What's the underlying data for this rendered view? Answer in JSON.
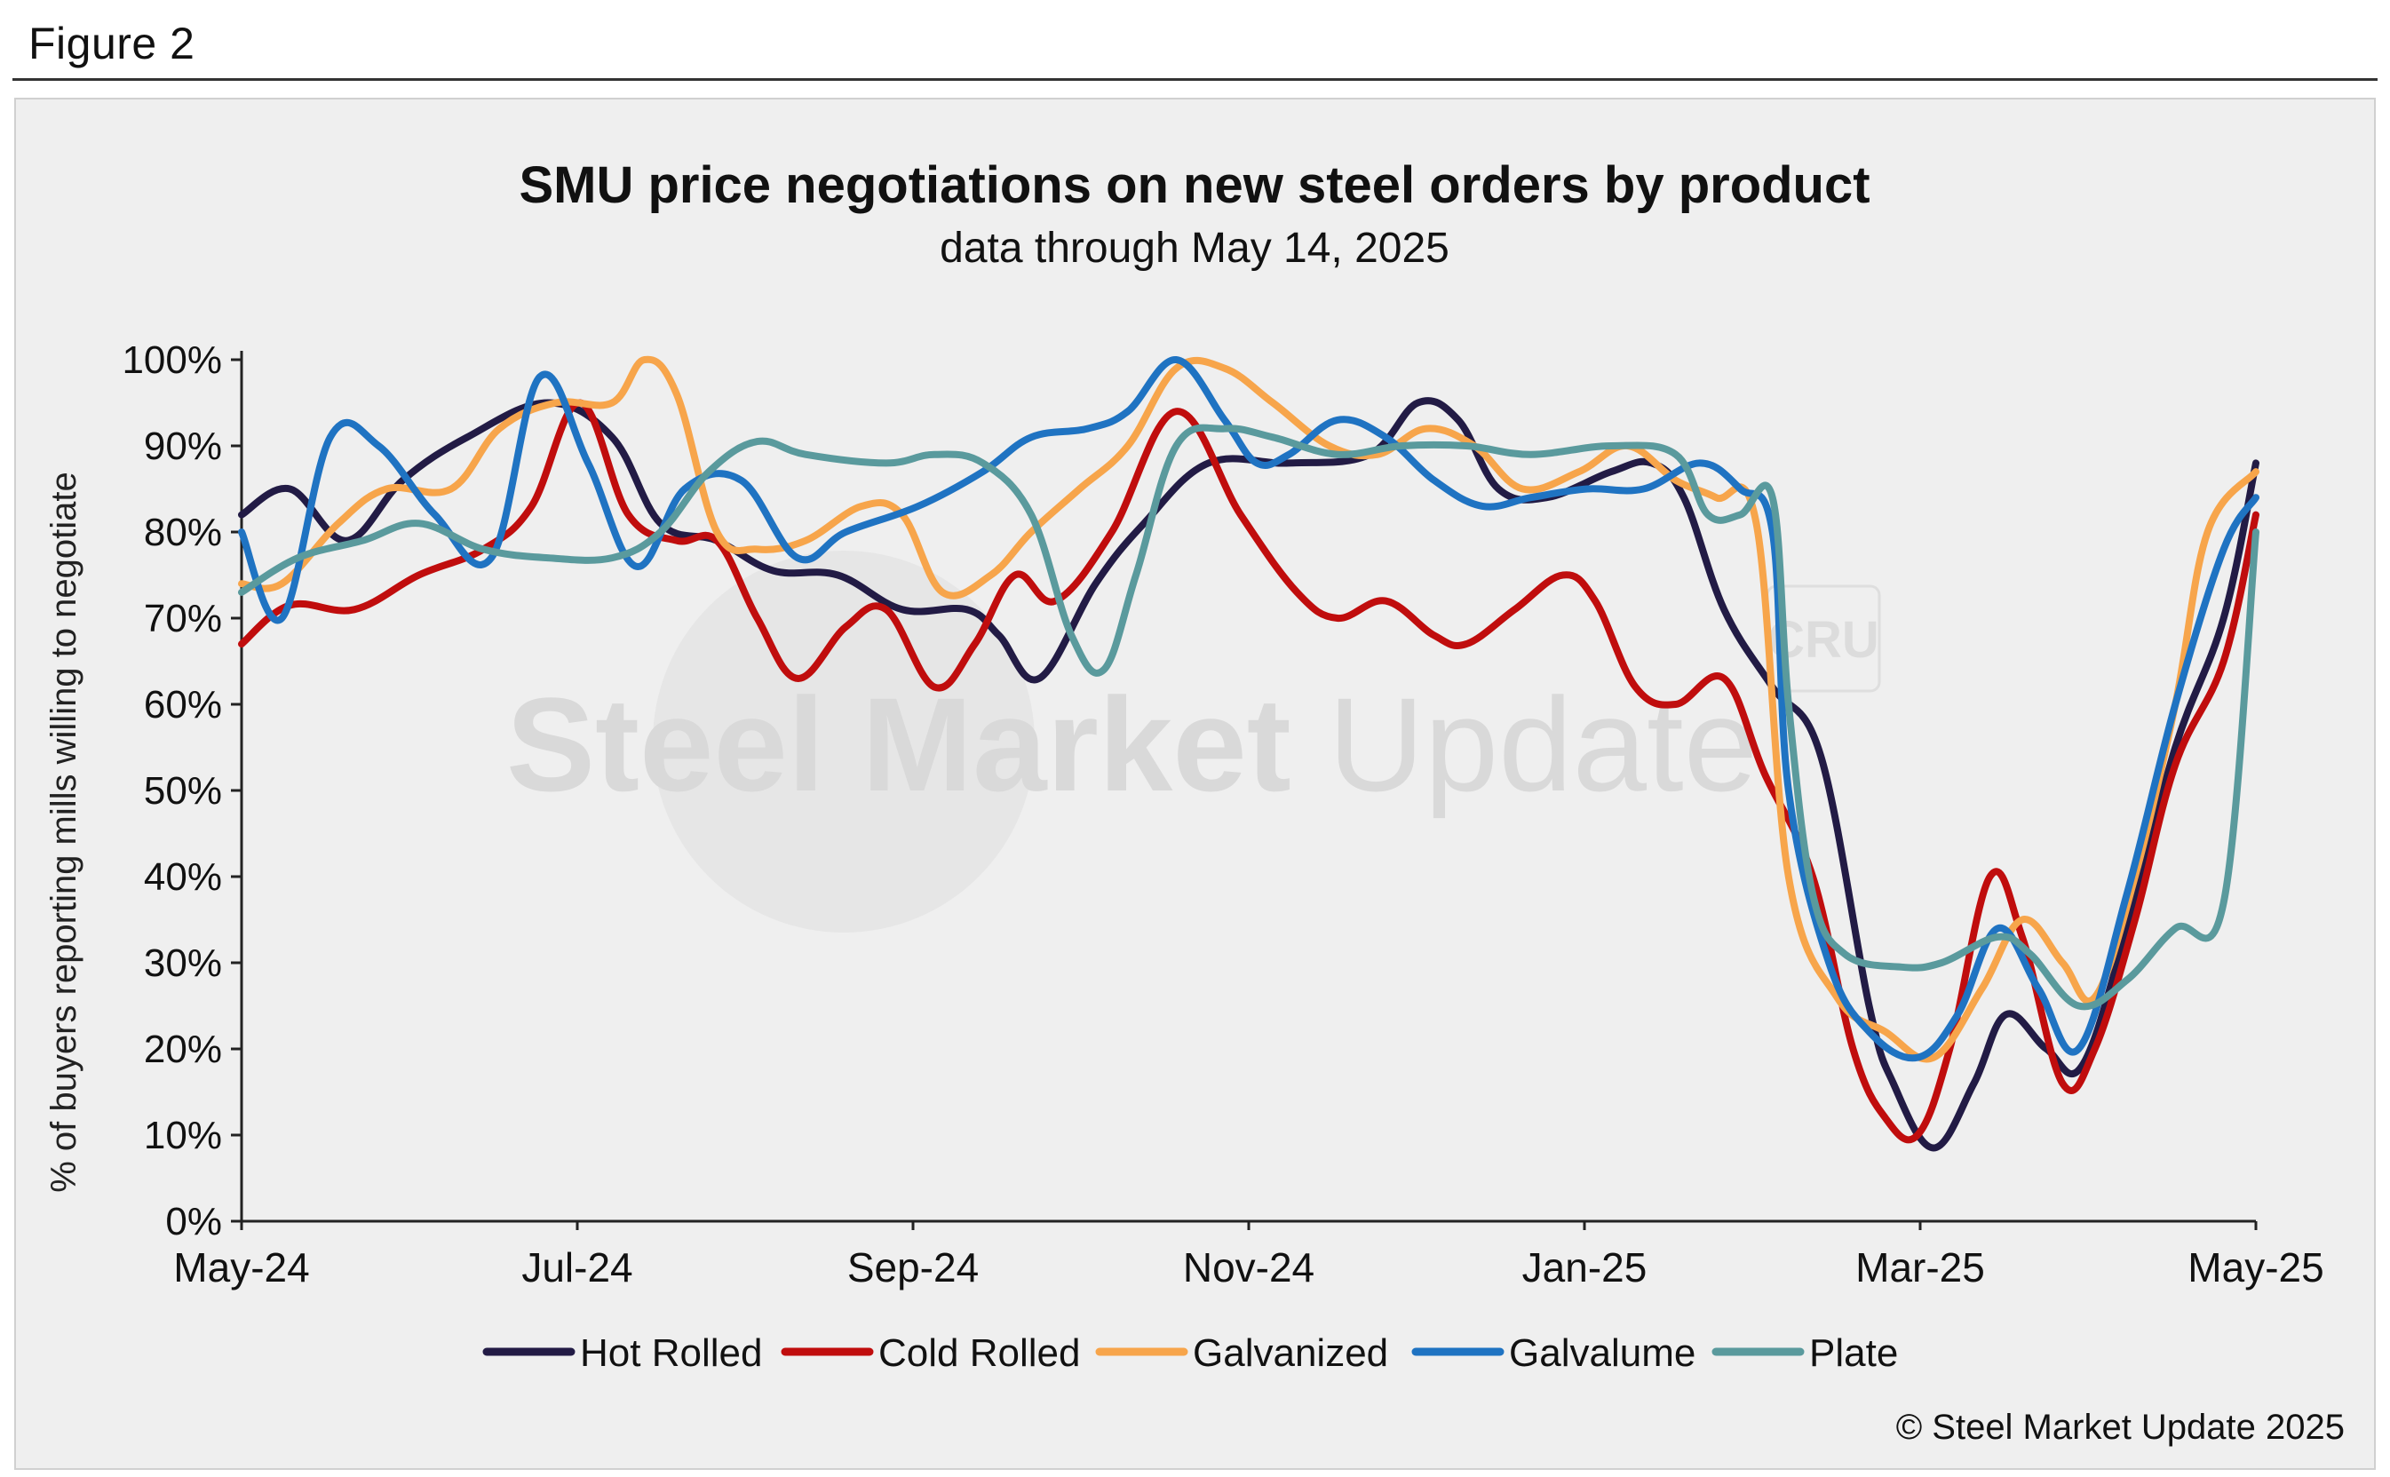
{
  "figure_label": "Figure 2",
  "copyright": "© Steel Market Update 2025",
  "watermark": {
    "text_bold": "Steel Market",
    "text_light": " Update",
    "badge": "CRU"
  },
  "colors": {
    "Hot Rolled": "#221b45",
    "Cold Rolled": "#c00d0d",
    "Galvanized": "#f7a54b",
    "Galvalume": "#1f73c2",
    "Plate": "#5a9a9d"
  },
  "chart_data": {
    "type": "line",
    "title": "SMU price negotiations on new steel orders by product",
    "subtitle": "data through May 14, 2025",
    "ylabel": "% of buyers reporting mills willing to negotiate",
    "xlabel": "",
    "ylim": [
      0,
      100
    ],
    "yticks": [
      "0%",
      "10%",
      "20%",
      "30%",
      "40%",
      "50%",
      "60%",
      "70%",
      "80%",
      "90%",
      "100%"
    ],
    "xticks": [
      "May-24",
      "Jul-24",
      "Sep-24",
      "Nov-24",
      "Jan-25",
      "Mar-25",
      "May-25"
    ],
    "x_range": [
      0,
      12.5
    ],
    "legend_position": "bottom",
    "grid": false,
    "series": [
      {
        "name": "Hot Rolled",
        "points": [
          [
            0,
            82
          ],
          [
            0.3,
            85
          ],
          [
            0.65,
            79
          ],
          [
            1,
            86
          ],
          [
            1.4,
            91
          ],
          [
            1.9,
            95
          ],
          [
            2.3,
            91
          ],
          [
            2.6,
            81
          ],
          [
            2.95,
            79
          ],
          [
            3.3,
            75.5
          ],
          [
            3.7,
            75
          ],
          [
            4.1,
            71
          ],
          [
            4.5,
            71
          ],
          [
            4.7,
            68
          ],
          [
            4.95,
            63
          ],
          [
            5.3,
            74
          ],
          [
            5.6,
            81
          ],
          [
            6,
            88
          ],
          [
            6.5,
            88
          ],
          [
            7,
            89
          ],
          [
            7.3,
            95
          ],
          [
            7.55,
            93
          ],
          [
            7.8,
            85
          ],
          [
            8.1,
            84
          ],
          [
            8.5,
            87
          ],
          [
            8.75,
            88
          ],
          [
            8.95,
            84
          ],
          [
            9.2,
            71
          ],
          [
            9.5,
            62
          ],
          [
            9.8,
            54
          ],
          [
            10.1,
            25
          ],
          [
            10.25,
            16
          ],
          [
            10.5,
            8.5
          ],
          [
            10.75,
            16
          ],
          [
            10.95,
            24
          ],
          [
            11.2,
            20
          ],
          [
            11.42,
            18
          ],
          [
            11.7,
            34
          ],
          [
            12,
            55
          ],
          [
            12.3,
            70
          ],
          [
            12.5,
            88
          ]
        ]
      },
      {
        "name": "Cold Rolled",
        "points": [
          [
            0,
            67
          ],
          [
            0.3,
            71.5
          ],
          [
            0.7,
            71
          ],
          [
            1.1,
            75
          ],
          [
            1.5,
            78
          ],
          [
            1.8,
            83
          ],
          [
            2.1,
            95
          ],
          [
            2.4,
            82
          ],
          [
            2.7,
            79
          ],
          [
            2.95,
            79
          ],
          [
            3.2,
            70
          ],
          [
            3.45,
            63
          ],
          [
            3.75,
            69
          ],
          [
            4,
            71
          ],
          [
            4.3,
            62
          ],
          [
            4.55,
            67
          ],
          [
            4.8,
            75
          ],
          [
            5.05,
            72
          ],
          [
            5.4,
            80
          ],
          [
            5.8,
            94
          ],
          [
            6.2,
            82
          ],
          [
            6.55,
            73
          ],
          [
            6.8,
            70
          ],
          [
            7.1,
            72
          ],
          [
            7.4,
            68
          ],
          [
            7.6,
            67
          ],
          [
            7.9,
            71
          ],
          [
            8.2,
            75
          ],
          [
            8.4,
            72
          ],
          [
            8.65,
            62
          ],
          [
            8.9,
            60
          ],
          [
            9.2,
            63
          ],
          [
            9.45,
            52
          ],
          [
            9.75,
            40
          ],
          [
            10,
            20
          ],
          [
            10.2,
            12
          ],
          [
            10.4,
            10
          ],
          [
            10.6,
            20
          ],
          [
            10.85,
            40
          ],
          [
            11.05,
            33
          ],
          [
            11.3,
            16
          ],
          [
            11.5,
            20
          ],
          [
            11.75,
            35
          ],
          [
            12,
            53
          ],
          [
            12.3,
            65
          ],
          [
            12.5,
            82
          ]
        ]
      },
      {
        "name": "Galvanized",
        "points": [
          [
            0,
            74
          ],
          [
            0.25,
            74
          ],
          [
            0.6,
            81
          ],
          [
            0.9,
            85
          ],
          [
            1.3,
            85
          ],
          [
            1.6,
            92
          ],
          [
            1.95,
            95
          ],
          [
            2.3,
            95
          ],
          [
            2.5,
            100
          ],
          [
            2.7,
            96
          ],
          [
            2.95,
            80
          ],
          [
            3.2,
            78
          ],
          [
            3.5,
            79
          ],
          [
            3.85,
            83
          ],
          [
            4.1,
            82
          ],
          [
            4.35,
            73
          ],
          [
            4.65,
            75
          ],
          [
            4.9,
            80
          ],
          [
            5.2,
            85
          ],
          [
            5.5,
            90
          ],
          [
            5.8,
            99
          ],
          [
            6.1,
            99
          ],
          [
            6.4,
            95
          ],
          [
            6.75,
            90
          ],
          [
            7.05,
            89
          ],
          [
            7.35,
            92
          ],
          [
            7.65,
            90
          ],
          [
            7.95,
            85
          ],
          [
            8.3,
            87
          ],
          [
            8.6,
            90
          ],
          [
            8.9,
            86
          ],
          [
            9.15,
            84
          ],
          [
            9.4,
            81
          ],
          [
            9.6,
            40
          ],
          [
            9.9,
            26
          ],
          [
            10.2,
            22
          ],
          [
            10.5,
            19
          ],
          [
            10.8,
            27
          ],
          [
            11.05,
            35
          ],
          [
            11.3,
            30
          ],
          [
            11.5,
            26
          ],
          [
            11.75,
            40
          ],
          [
            12,
            60
          ],
          [
            12.2,
            80
          ],
          [
            12.5,
            87
          ]
        ]
      },
      {
        "name": "Galvalume",
        "points": [
          [
            0,
            80
          ],
          [
            0.25,
            70
          ],
          [
            0.55,
            91
          ],
          [
            0.85,
            90
          ],
          [
            1.2,
            82
          ],
          [
            1.55,
            77
          ],
          [
            1.85,
            98
          ],
          [
            2.15,
            88
          ],
          [
            2.45,
            76
          ],
          [
            2.75,
            85
          ],
          [
            3.1,
            86
          ],
          [
            3.45,
            77
          ],
          [
            3.75,
            80
          ],
          [
            4.2,
            83
          ],
          [
            4.6,
            87
          ],
          [
            4.9,
            91
          ],
          [
            5.25,
            92
          ],
          [
            5.5,
            94
          ],
          [
            5.8,
            100
          ],
          [
            6.1,
            93
          ],
          [
            6.3,
            88
          ],
          [
            6.5,
            89
          ],
          [
            6.8,
            93
          ],
          [
            7.1,
            91
          ],
          [
            7.4,
            86
          ],
          [
            7.7,
            83
          ],
          [
            8,
            84
          ],
          [
            8.35,
            85
          ],
          [
            8.7,
            85
          ],
          [
            9.05,
            88
          ],
          [
            9.3,
            85
          ],
          [
            9.5,
            80
          ],
          [
            9.6,
            50
          ],
          [
            9.85,
            30
          ],
          [
            10.1,
            22
          ],
          [
            10.4,
            19
          ],
          [
            10.65,
            24
          ],
          [
            10.9,
            34
          ],
          [
            11.15,
            27
          ],
          [
            11.4,
            20
          ],
          [
            11.7,
            38
          ],
          [
            12,
            60
          ],
          [
            12.3,
            78
          ],
          [
            12.5,
            84
          ]
        ]
      },
      {
        "name": "Plate",
        "points": [
          [
            0,
            73
          ],
          [
            0.35,
            77
          ],
          [
            0.75,
            79
          ],
          [
            1.1,
            81
          ],
          [
            1.5,
            78
          ],
          [
            1.9,
            77
          ],
          [
            2.3,
            77
          ],
          [
            2.6,
            80
          ],
          [
            2.9,
            87
          ],
          [
            3.2,
            90.5
          ],
          [
            3.5,
            89
          ],
          [
            4,
            88
          ],
          [
            4.3,
            89
          ],
          [
            4.6,
            88
          ],
          [
            4.9,
            82
          ],
          [
            5.15,
            68
          ],
          [
            5.35,
            64
          ],
          [
            5.55,
            75
          ],
          [
            5.8,
            90
          ],
          [
            6.1,
            92
          ],
          [
            6.4,
            91
          ],
          [
            6.8,
            89
          ],
          [
            7.2,
            90
          ],
          [
            7.6,
            90
          ],
          [
            8,
            89
          ],
          [
            8.5,
            90
          ],
          [
            8.9,
            89
          ],
          [
            9.1,
            82
          ],
          [
            9.3,
            82
          ],
          [
            9.5,
            84
          ],
          [
            9.6,
            60
          ],
          [
            9.75,
            38
          ],
          [
            9.95,
            31
          ],
          [
            10.3,
            29.5
          ],
          [
            10.55,
            30
          ],
          [
            10.9,
            33
          ],
          [
            11.1,
            31
          ],
          [
            11.4,
            25
          ],
          [
            11.7,
            28
          ],
          [
            12,
            34
          ],
          [
            12.3,
            37
          ],
          [
            12.5,
            80
          ]
        ]
      }
    ]
  }
}
